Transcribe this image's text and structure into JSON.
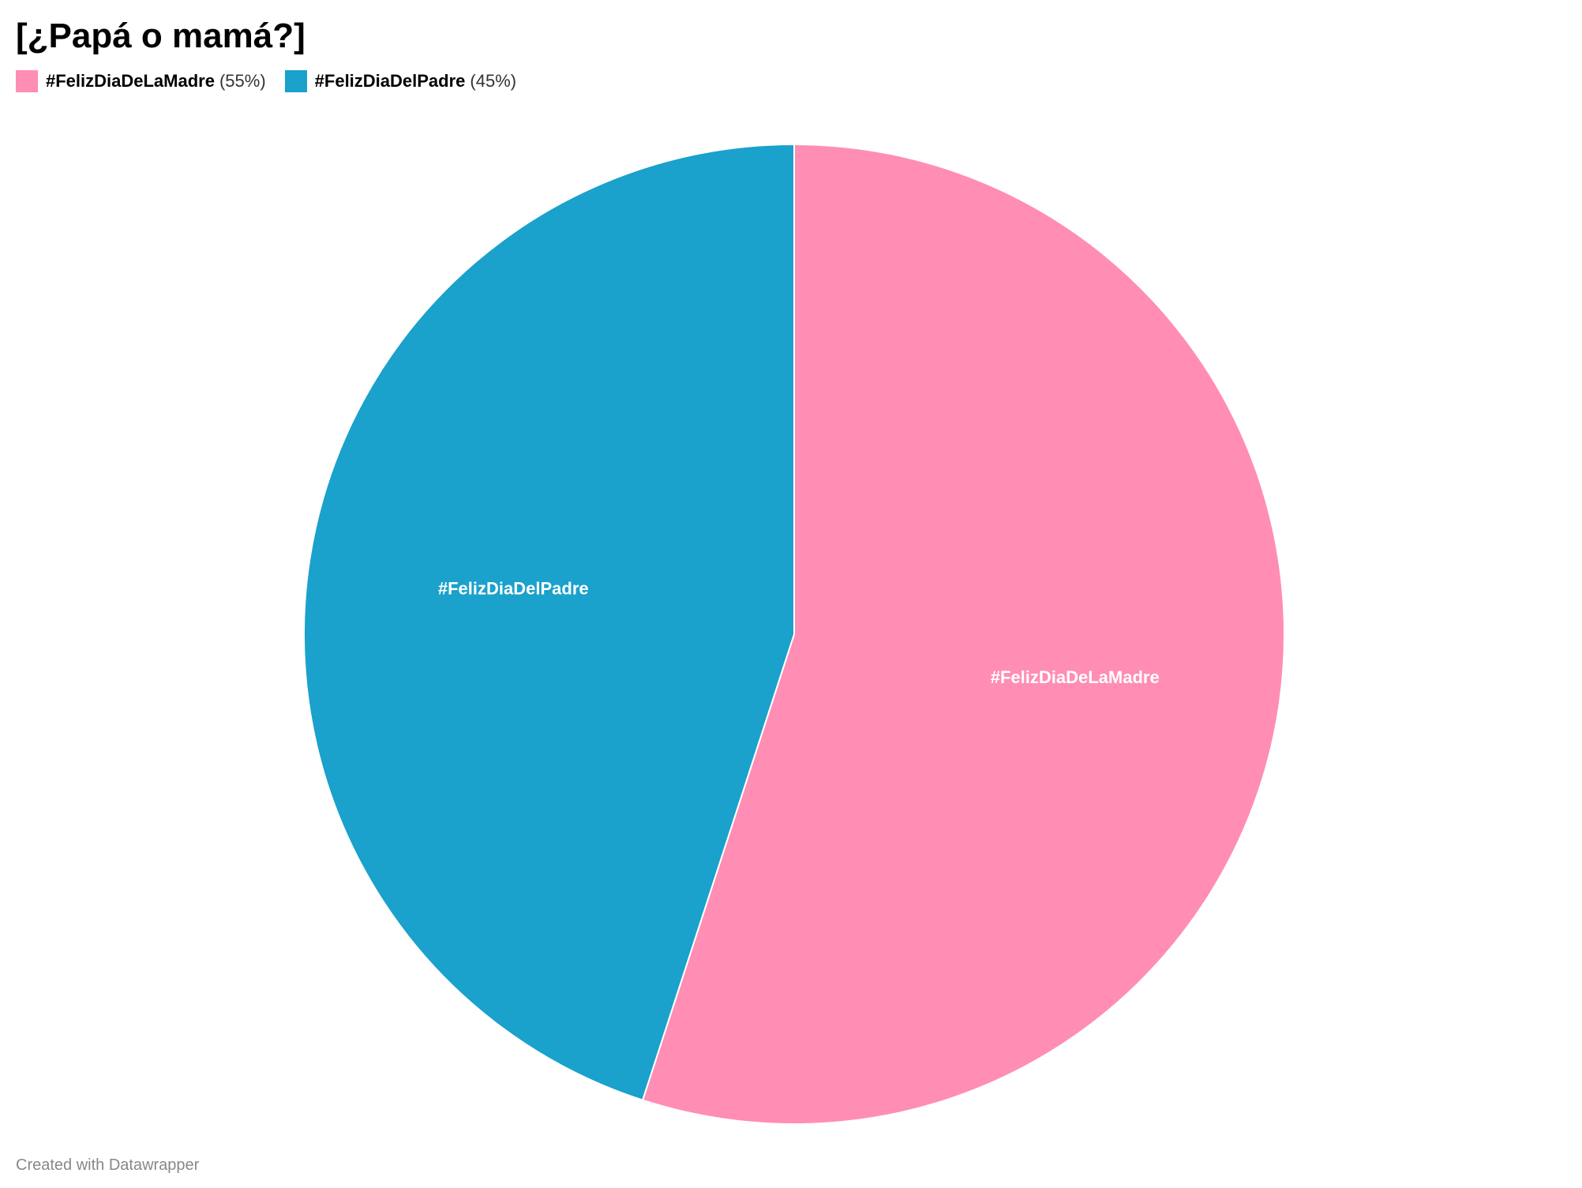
{
  "chart": {
    "title": "[¿Papá o mamá?]",
    "footer": "Created with Datawrapper"
  },
  "legend": [
    {
      "name": "#FelizDiaDeLaMadre",
      "pct": "(55%)",
      "color": "#ff8db4"
    },
    {
      "name": "#FelizDiaDelPadre",
      "pct": "(45%)",
      "color": "#1aa1cc"
    }
  ],
  "chart_data": {
    "type": "pie",
    "title": "[¿Papá o mamá?]",
    "categories": [
      "#FelizDiaDeLaMadre",
      "#FelizDiaDelPadre"
    ],
    "values": [
      55,
      45
    ],
    "colors": [
      "#ff8db4",
      "#1aa1cc"
    ],
    "slice_labels": [
      "#FelizDiaDeLaMadre",
      "#FelizDiaDelPadre"
    ],
    "legend_position": "top-left",
    "start_angle": "12 o'clock",
    "direction": "clockwise"
  }
}
